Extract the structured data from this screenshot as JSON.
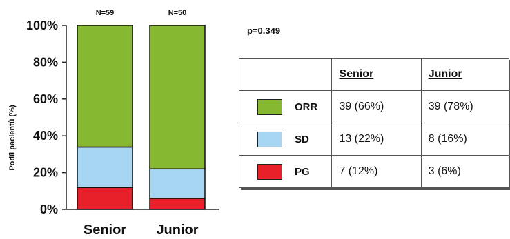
{
  "chart_data": {
    "type": "bar",
    "stacked": true,
    "categories": [
      "Senior",
      "Junior"
    ],
    "n_labels": [
      "N=59",
      "N=50"
    ],
    "ylabel": "Podíl pacientů (%)",
    "ylim": [
      0,
      100
    ],
    "yticks": [
      "0%",
      "20%",
      "40%",
      "60%",
      "80%",
      "100%"
    ],
    "ytick_values": [
      0,
      20,
      40,
      60,
      80,
      100
    ],
    "series": [
      {
        "name": "PG",
        "values": [
          11.9,
          6
        ],
        "color": "#e8202a"
      },
      {
        "name": "SD",
        "values": [
          22,
          16
        ],
        "color": "#a6d6f2"
      },
      {
        "name": "ORR",
        "values": [
          66.1,
          78
        ],
        "color": "#86b831"
      }
    ]
  },
  "p_value": "p=0.349",
  "table": {
    "headers": [
      "Senior",
      "Junior"
    ],
    "rows": [
      {
        "label": "ORR",
        "color": "#86b831",
        "senior": "39 (66%)",
        "junior": "39 (78%)"
      },
      {
        "label": "SD",
        "color": "#a6d6f2",
        "senior": "13 (22%)",
        "junior": "8 (16%)"
      },
      {
        "label": "PG",
        "color": "#e8202a",
        "senior": "7 (12%)",
        "junior": "3 (6%)"
      }
    ]
  }
}
